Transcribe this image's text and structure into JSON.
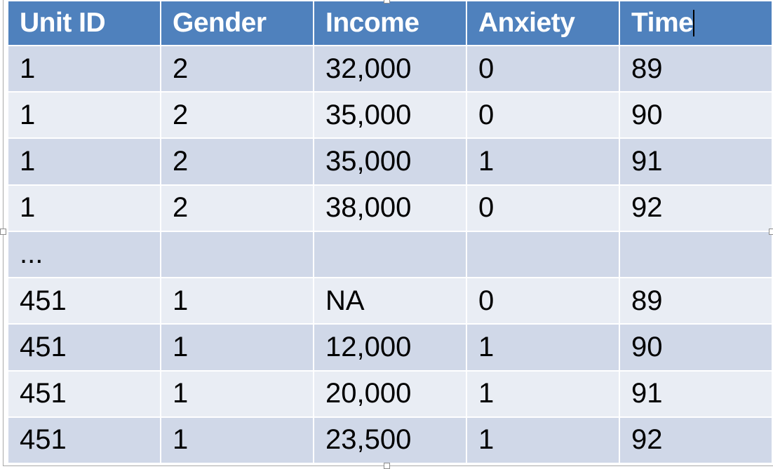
{
  "table": {
    "columns": [
      "Unit ID",
      "Gender",
      "Income",
      "Anxiety",
      "Time"
    ],
    "rows": [
      [
        "1",
        "2",
        "32,000",
        "0",
        "89"
      ],
      [
        "1",
        "2",
        "35,000",
        "0",
        "90"
      ],
      [
        "1",
        "2",
        "35,000",
        "1",
        "91"
      ],
      [
        "1",
        "2",
        "38,000",
        "0",
        "92"
      ],
      [
        "...",
        "",
        "",
        "",
        ""
      ],
      [
        "451",
        "1",
        "NA",
        "0",
        "89"
      ],
      [
        "451",
        "1",
        "12,000",
        "1",
        "90"
      ],
      [
        "451",
        "1",
        "20,000",
        "1",
        "91"
      ],
      [
        "451",
        "1",
        "23,500",
        "1",
        "92"
      ]
    ]
  },
  "colors": {
    "header_bg": "#4f81bd",
    "row_band_dark": "#d0d8e8",
    "row_band_light": "#e9edf4"
  }
}
